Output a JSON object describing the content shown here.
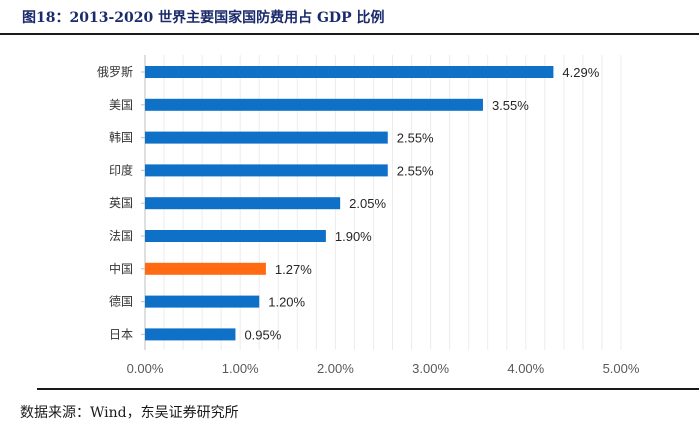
{
  "figure": {
    "title": "图18：2013-2020 世界主要国家国防费用占 GDP 比例",
    "source": "数据来源：Wind，东吴证券研究所"
  },
  "chart_data": {
    "type": "bar",
    "orientation": "horizontal",
    "categories": [
      "俄罗斯",
      "美国",
      "韩国",
      "印度",
      "英国",
      "法国",
      "中国",
      "德国",
      "日本"
    ],
    "values": [
      4.29,
      3.55,
      2.55,
      2.55,
      2.05,
      1.9,
      1.27,
      1.2,
      0.95
    ],
    "value_labels": [
      "4.29%",
      "3.55%",
      "2.55%",
      "2.55%",
      "2.05%",
      "1.90%",
      "1.27%",
      "1.20%",
      "0.95%"
    ],
    "xlim": [
      0,
      5
    ],
    "x_ticks": [
      0,
      1,
      2,
      3,
      4,
      5
    ],
    "x_tick_labels": [
      "0.00%",
      "1.00%",
      "2.00%",
      "3.00%",
      "4.00%",
      "5.00%"
    ],
    "grid": true,
    "legend": "none",
    "colors": {
      "default": "#0e70c6",
      "highlight": "#ff6a13"
    },
    "highlight_category": "中国"
  }
}
